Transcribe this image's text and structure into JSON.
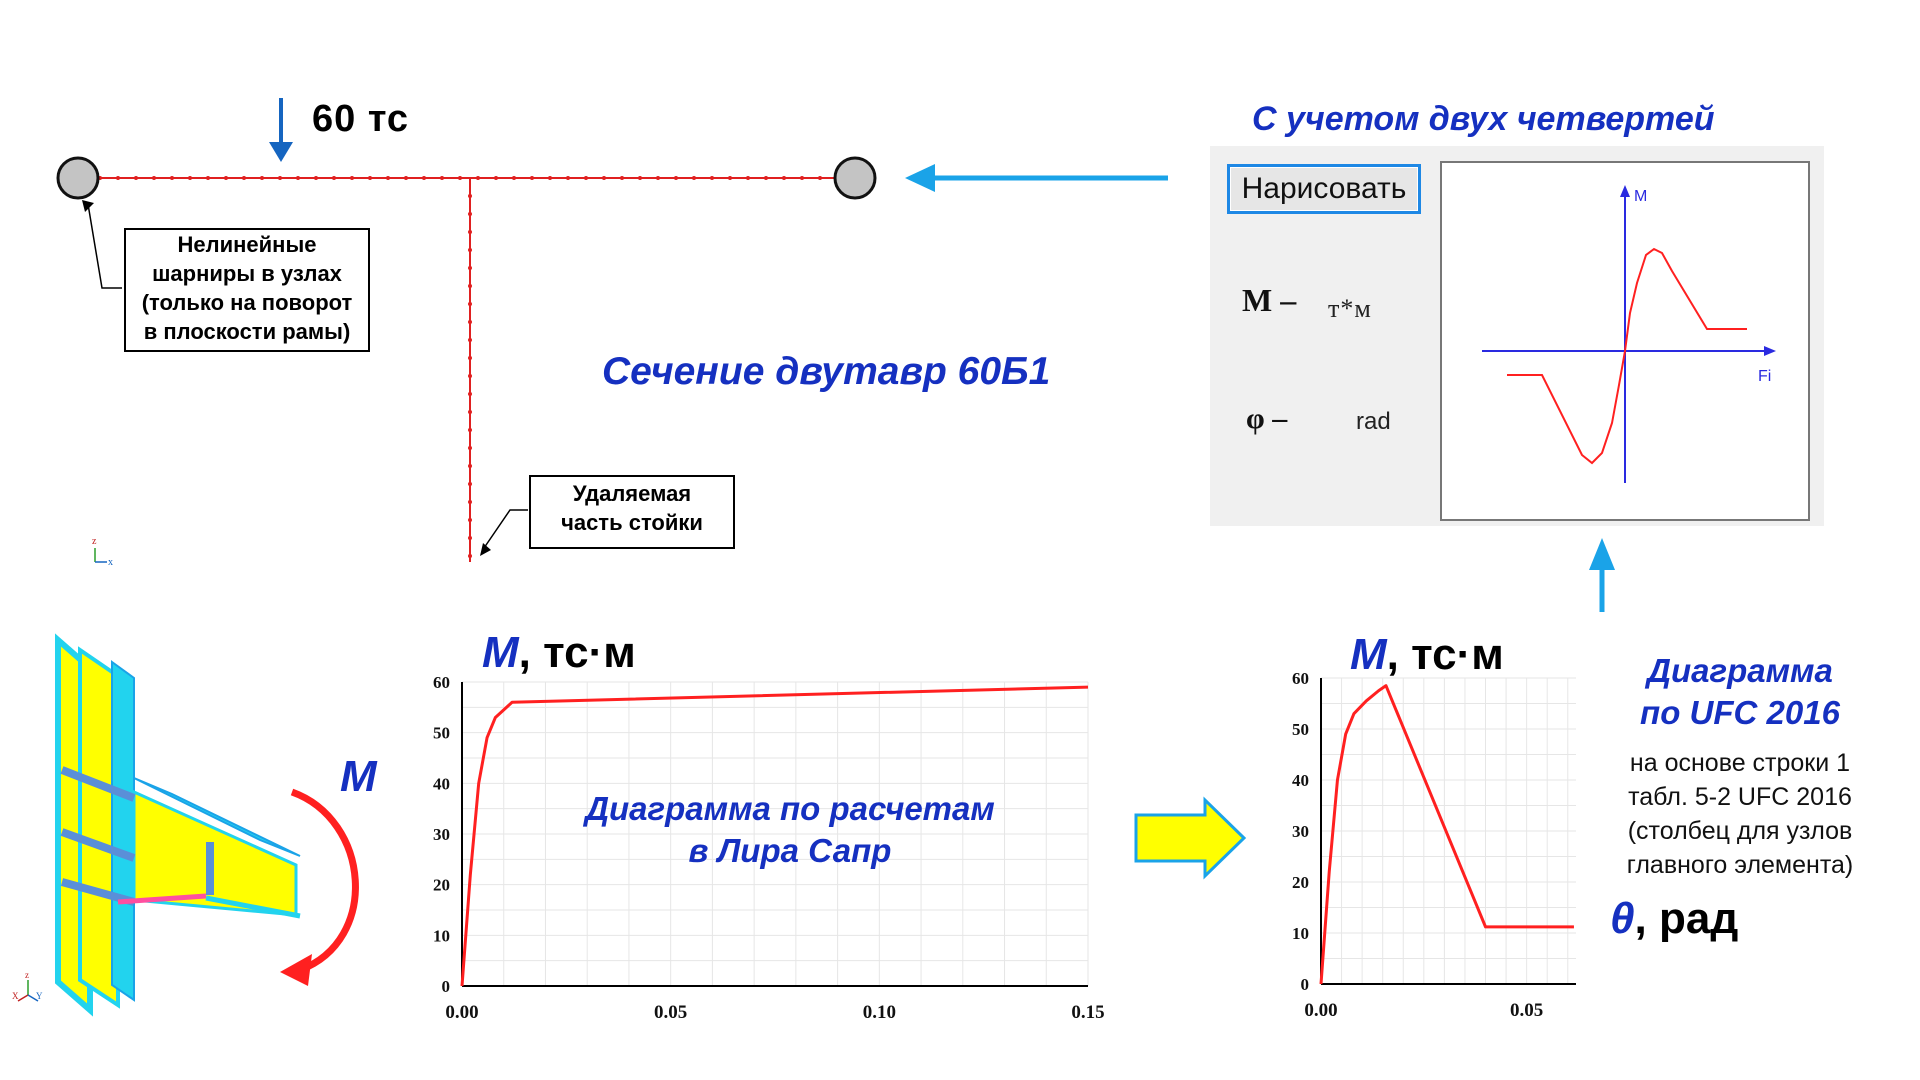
{
  "frame": {
    "load_label": "60 тс",
    "hinge_note_lines": [
      "Нелинейные",
      "шарниры в узлах",
      "(только на поворот",
      "в плоскости рамы)"
    ],
    "removed_note_lines": [
      "Удаляемая",
      "часть стойки"
    ],
    "section_title": "Сечение двутавр 60Б1",
    "axis_z": "z",
    "axis_x": "x"
  },
  "panel": {
    "title": "С учетом двух четвертей",
    "draw_button": "Нарисовать",
    "m_symbol": "M –",
    "m_unit": "т*м",
    "phi_symbol": "φ –",
    "phi_unit": "rad",
    "axis_m": "M",
    "axis_fi": "Fi"
  },
  "lira": {
    "m_letter": "M",
    "m_unit": ", тс·м",
    "caption_lines": [
      "Диаграмма по расчетам",
      "в Лира Сапр"
    ],
    "node_moment": "M",
    "axis_x": "X",
    "axis_y": "Y",
    "axis_z": "z"
  },
  "ufc": {
    "m_letter": "M",
    "m_unit": ", тс·м",
    "title_lines": [
      "Диаграмма",
      "по UFC 2016"
    ],
    "desc_lines": [
      "на основе строки 1",
      "табл. 5-2 UFC 2016",
      "(столбец для узлов",
      "главного элемента)"
    ],
    "theta_letter": "θ",
    "theta_unit": ", рад"
  },
  "chart_data": [
    {
      "type": "line",
      "xlim": [
        0,
        0.15
      ],
      "ylim": [
        0,
        60
      ],
      "x_ticks": [
        "0.00",
        "0.05",
        "0.10",
        "0.15"
      ],
      "x_tick_values": [
        0,
        0.05,
        0.1,
        0.15
      ],
      "y_ticks": [
        "0",
        "10",
        "20",
        "30",
        "40",
        "50",
        "60"
      ],
      "y_tick_values": [
        0,
        10,
        20,
        30,
        40,
        50,
        60
      ],
      "grid": true,
      "series": [
        {
          "color": "#ff2020",
          "x": [
            0,
            0.002,
            0.004,
            0.006,
            0.008,
            0.01,
            0.012,
            0.15
          ],
          "y": [
            0,
            22,
            40,
            49,
            53,
            54.5,
            56,
            59
          ]
        }
      ]
    },
    {
      "type": "line",
      "xlim": [
        0,
        0.062
      ],
      "ylim": [
        0,
        60
      ],
      "x_ticks": [
        "0.00",
        "0.05"
      ],
      "x_tick_values": [
        0,
        0.05
      ],
      "y_ticks": [
        "0",
        "10",
        "20",
        "30",
        "40",
        "50",
        "60"
      ],
      "y_tick_values": [
        0,
        10,
        20,
        30,
        40,
        50,
        60
      ],
      "grid": true,
      "series": [
        {
          "color": "#ff2020",
          "x": [
            0,
            0.002,
            0.004,
            0.006,
            0.008,
            0.011,
            0.014,
            0.0158,
            0.04,
            0.0615
          ],
          "y": [
            0,
            22,
            40,
            49,
            53,
            55.5,
            57.5,
            58.5,
            11.2,
            11.2
          ]
        }
      ]
    }
  ],
  "colors": {
    "accent_blue": "#1530c0",
    "arrow_blue": "#1aa3e8",
    "curve_red": "#ff2020",
    "beam_yellow": "#ffff00",
    "beam_cyan": "#22d3ee"
  }
}
